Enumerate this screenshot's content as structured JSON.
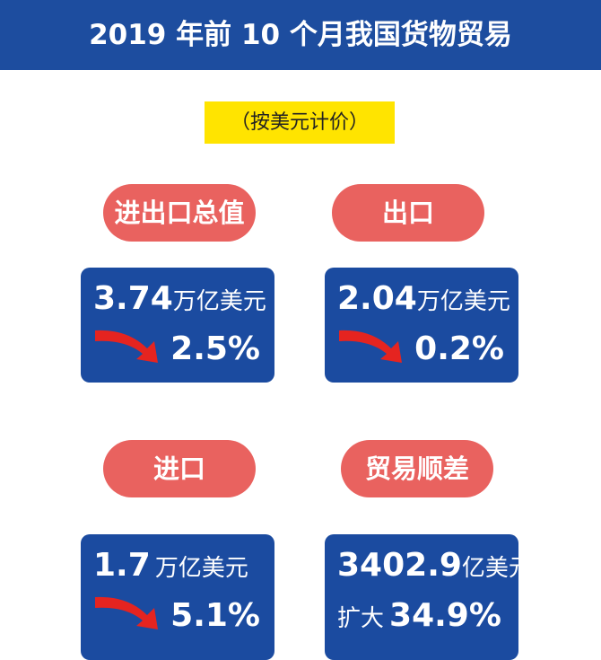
{
  "header": {
    "title": "2019 年前 10 个月我国货物贸易",
    "subtitle": "（按美元计价）"
  },
  "cards": [
    {
      "label": "进出口总值",
      "value": "3.74",
      "unit": "万亿美元",
      "change": "2.5%"
    },
    {
      "label": "出口",
      "value": "2.04",
      "unit": "万亿美元",
      "change": "0.2%"
    },
    {
      "label": "进口",
      "value": "1.7",
      "unit": "万亿美元",
      "change": "5.1%"
    },
    {
      "label": "贸易顺差",
      "value": "3402.9",
      "unit": "亿美元",
      "change_prefix": "扩大",
      "change": "34.9%"
    }
  ]
}
